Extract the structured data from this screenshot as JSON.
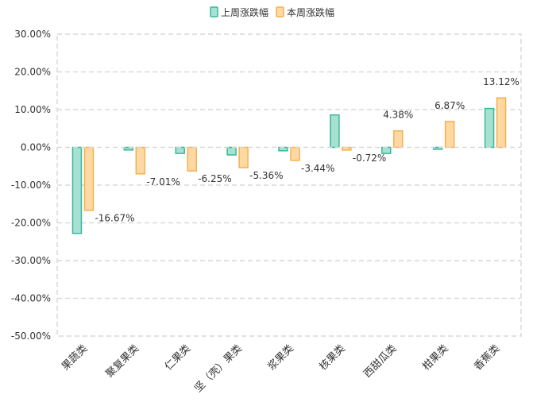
{
  "chart_data": {
    "type": "bar",
    "categories": [
      "果蔬类",
      "聚复果类",
      "仁果类",
      "坚（壳）果类",
      "浆果类",
      "核果类",
      "西甜瓜类",
      "柑果类",
      "香蕉类"
    ],
    "series": [
      {
        "name": "上周涨跌幅",
        "values": [
          -22.8,
          -0.7,
          -1.6,
          -2.0,
          -0.9,
          8.6,
          -1.6,
          -0.5,
          10.3
        ],
        "color": "#3cb89a",
        "fill": "#a6e1d1"
      },
      {
        "name": "本周涨跌幅",
        "values": [
          -16.67,
          -7.01,
          -6.25,
          -5.36,
          -3.44,
          -0.72,
          4.38,
          6.87,
          13.12
        ],
        "color": "#f4b14f",
        "fill": "#ffd8a3"
      }
    ],
    "data_labels": [
      "-16.67%",
      "-7.01%",
      "-6.25%",
      "-5.36%",
      "-3.44%",
      "-0.72%",
      "4.38%",
      "6.87%",
      "13.12%"
    ],
    "y_tick_labels": [
      "30.00%",
      "20.00%",
      "10.00%",
      "0.00%",
      "-10.00%",
      "-20.00%",
      "-30.00%",
      "-40.00%",
      "-50.00%"
    ],
    "ylim": [
      -50,
      30
    ],
    "grid": true,
    "legend_position": "top-center",
    "title": "",
    "xlabel": "",
    "ylabel": ""
  }
}
